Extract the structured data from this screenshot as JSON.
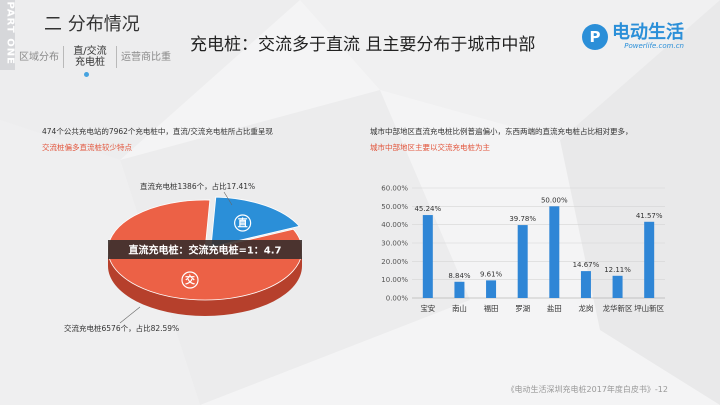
{
  "header": {
    "part_label": "PART ONE",
    "section_title": "二 分布情况",
    "tabs": [
      {
        "label": "区域分布"
      },
      {
        "label_line1": "直/交流",
        "label_line2": "充电桩"
      },
      {
        "label": "运营商比重"
      }
    ],
    "main_title": "充电桩：交流多于直流 且主要分布于城市中部"
  },
  "logo": {
    "mark": "P",
    "name": "电动生活",
    "url": "Powerlife.com.cn"
  },
  "left_panel": {
    "text": "474个公共充电站的7962个充电桩中，直流/交流充电桩所占比重呈现",
    "highlight": "交流桩偏多直流桩较少特点"
  },
  "right_panel": {
    "text": "城市中部地区直流充电桩比例普遍偏小，东西两端的直流充电桩占比相对更多，",
    "highlight": "城市中部地区主要以交流充电桩为主"
  },
  "footer": "《电动生活深圳充电桩2017年度白皮书》-12",
  "colors": {
    "ac": "#ec6146",
    "ac_side": "#b6402c",
    "dc": "#2b8fd8",
    "dc_side": "#1e6aa6",
    "bar": "#2f86d6",
    "highlight": "#e2543b"
  },
  "chart_data": [
    {
      "type": "pie",
      "slices": [
        {
          "name": "直",
          "value": 17.41,
          "label": "直流充电桩1386个，占比17.41%"
        },
        {
          "name": "交",
          "value": 82.59,
          "label": "交流充电桩6576个，占比82.59%"
        }
      ],
      "center_label": "直流充电桩：交流充电桩=1：4.7"
    },
    {
      "type": "bar",
      "categories": [
        "宝安",
        "南山",
        "福田",
        "罗湖",
        "盐田",
        "龙岗",
        "龙华新区",
        "坪山新区"
      ],
      "values": [
        45.24,
        8.84,
        9.61,
        39.78,
        50.0,
        14.67,
        12.11,
        41.57
      ],
      "value_labels": [
        "45.24%",
        "8.84%",
        "9.61%",
        "39.78%",
        "50.00%",
        "14.67%",
        "12.11%",
        "41.57%"
      ],
      "ylim": [
        0,
        60
      ],
      "yticks": [
        "0.00%",
        "10.00%",
        "20.00%",
        "30.00%",
        "40.00%",
        "50.00%",
        "60.00%"
      ],
      "grid": true
    }
  ]
}
